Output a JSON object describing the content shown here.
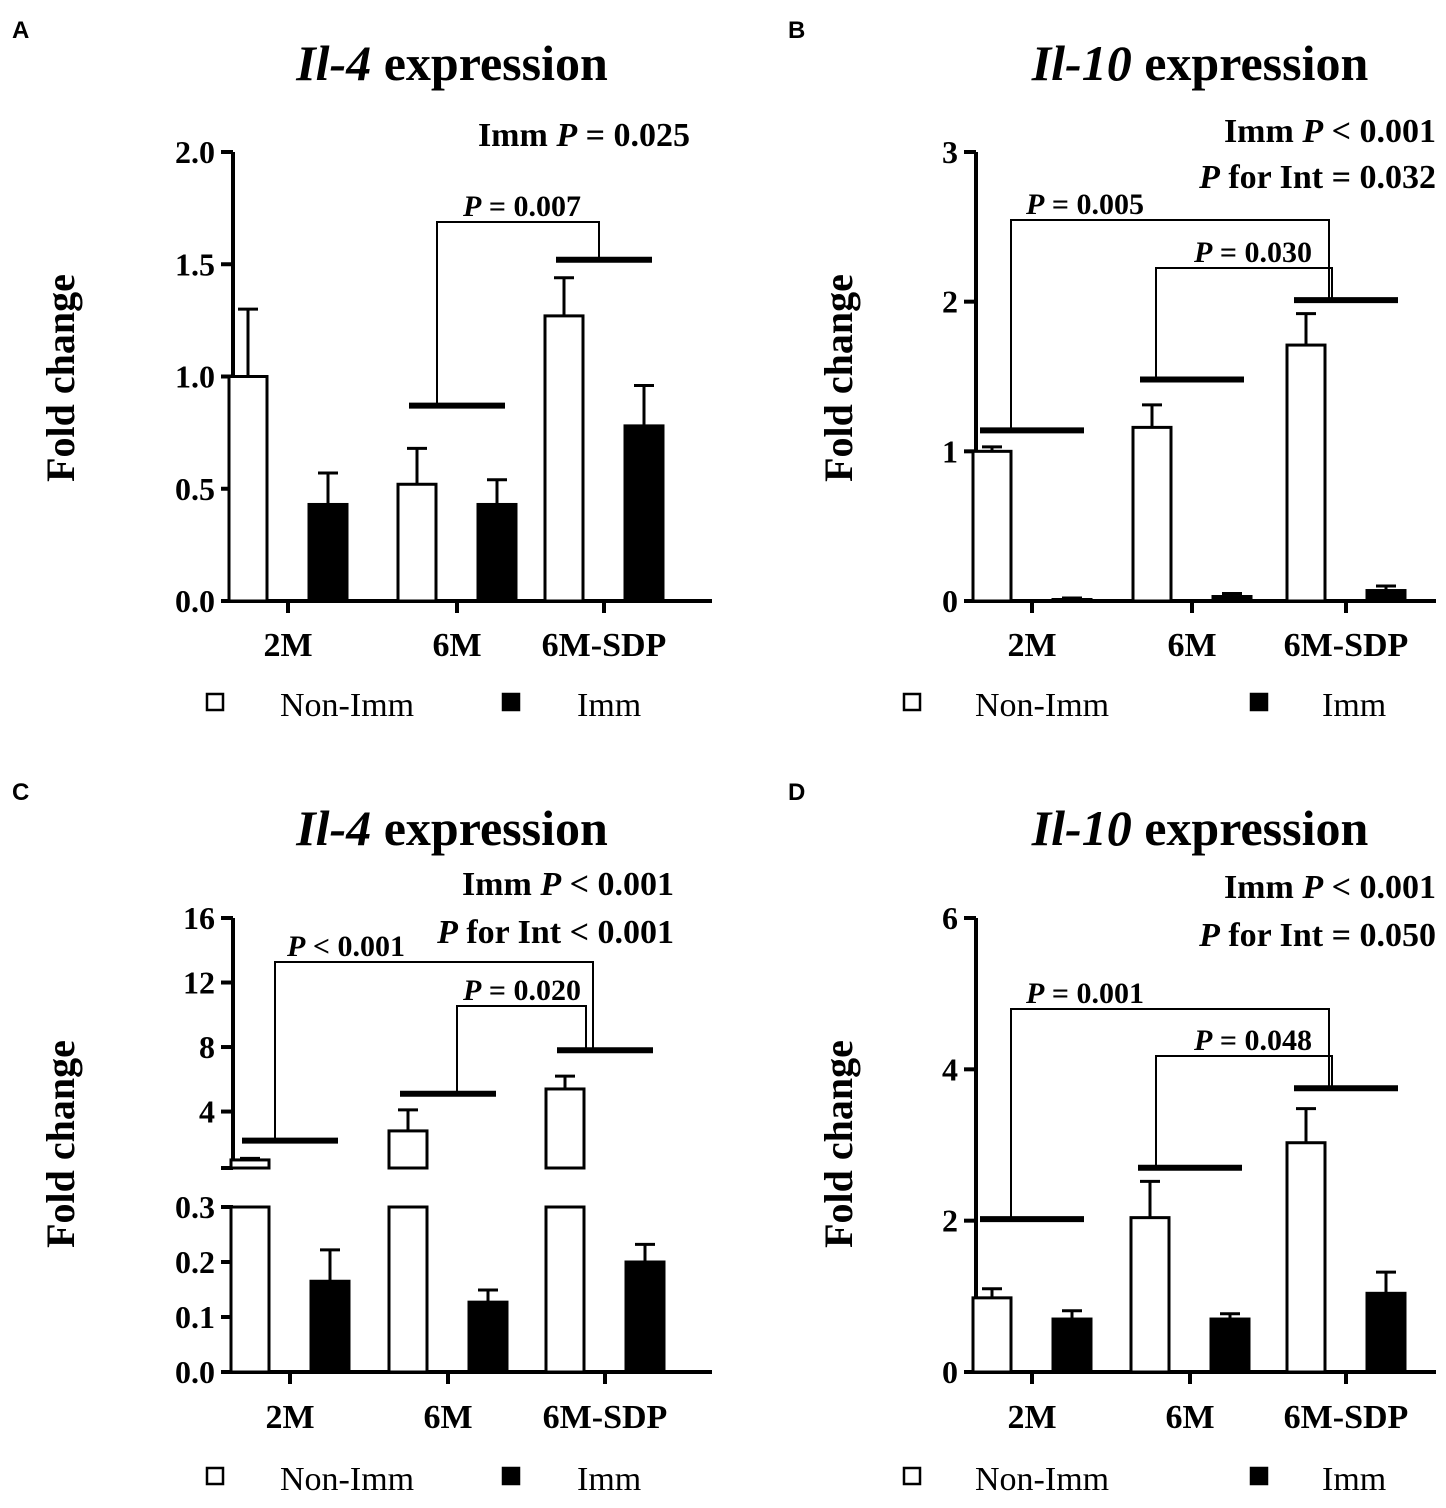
{
  "chart_data": [
    {
      "panel": "A",
      "type": "bar",
      "title_gene": "Il-4",
      "title_rest": " expression",
      "ylabel": "Fold change",
      "yticks": [
        "0.0",
        "0.5",
        "1.0",
        "1.5",
        "2.0"
      ],
      "ylim": [
        0,
        2.0
      ],
      "categories": [
        "2M",
        "6M",
        "6M-SDP"
      ],
      "series": [
        {
          "name": "Non-Imm",
          "values": [
            1.0,
            0.52,
            1.27
          ],
          "errors": [
            0.3,
            0.16,
            0.17
          ]
        },
        {
          "name": "Imm",
          "values": [
            0.43,
            0.43,
            0.78
          ],
          "errors": [
            0.14,
            0.11,
            0.18
          ]
        }
      ],
      "stats": [
        {
          "pre": "Imm ",
          "italic": "P",
          "post": " = 0.025"
        }
      ],
      "comparisons": [
        {
          "italic": "P",
          "text": " = 0.007",
          "from": "6M",
          "to": "6M-SDP"
        }
      ],
      "group_lines": {
        "6M": 0.87,
        "6M-SDP": 1.52
      },
      "legend": [
        "Non-Imm",
        "Imm"
      ]
    },
    {
      "panel": "B",
      "type": "bar",
      "title_gene": "Il-10",
      "title_rest": " expression",
      "ylabel": "Fold change",
      "yticks": [
        "0",
        "1",
        "2",
        "3"
      ],
      "ylim": [
        0,
        3
      ],
      "categories": [
        "2M",
        "6M",
        "6M-SDP"
      ],
      "series": [
        {
          "name": "Non-Imm",
          "values": [
            1.0,
            1.16,
            1.71
          ],
          "errors": [
            0.03,
            0.15,
            0.21
          ]
        },
        {
          "name": "Imm",
          "values": [
            0.01,
            0.03,
            0.07
          ],
          "errors": [
            0.01,
            0.02,
            0.03
          ]
        }
      ],
      "stats": [
        {
          "pre": "Imm ",
          "italic": "P",
          "post": " < 0.001"
        },
        {
          "pre": "",
          "italic": "P",
          "post": " for Int = 0.032"
        }
      ],
      "comparisons": [
        {
          "italic": "P",
          "text": " = 0.005",
          "from": "2M",
          "to": "6M-SDP"
        },
        {
          "italic": "P",
          "text": " = 0.030",
          "from": "6M",
          "to": "6M-SDP"
        }
      ],
      "group_lines": {
        "2M": 1.14,
        "6M": 1.48,
        "6M-SDP": 2.01
      },
      "legend": [
        "Non-Imm",
        "Imm"
      ]
    },
    {
      "panel": "C",
      "type": "bar",
      "title_gene": "Il-4",
      "title_rest": " expression",
      "ylabel": "Fold change",
      "broken_axis": true,
      "yticks_upper": [
        "4",
        "8",
        "12",
        "16"
      ],
      "ylim_upper": [
        0.5,
        16
      ],
      "yticks_lower": [
        "0.0",
        "0.1",
        "0.2",
        "0.3"
      ],
      "ylim_lower": [
        0,
        0.3
      ],
      "categories": [
        "2M",
        "6M",
        "6M-SDP"
      ],
      "series": [
        {
          "name": "Non-Imm",
          "values": [
            1.0,
            2.8,
            5.4
          ],
          "errors": [
            0.1,
            1.3,
            0.8
          ]
        },
        {
          "name": "Imm",
          "values": [
            0.165,
            0.127,
            0.2
          ],
          "errors": [
            0.057,
            0.022,
            0.032
          ]
        }
      ],
      "stats": [
        {
          "pre": "Imm ",
          "italic": "P",
          "post": " < 0.001"
        },
        {
          "pre": "",
          "italic": "P",
          "post": " for Int < 0.001"
        }
      ],
      "comparisons": [
        {
          "italic": "P",
          "text": " < 0.001",
          "from": "2M",
          "to": "6M-SDP"
        },
        {
          "italic": "P",
          "text": " = 0.020",
          "from": "6M",
          "to": "6M-SDP"
        }
      ],
      "group_lines": {
        "2M": 2.2,
        "6M": 5.1,
        "6M-SDP": 7.8
      },
      "legend": [
        "Non-Imm",
        "Imm"
      ]
    },
    {
      "panel": "D",
      "type": "bar",
      "title_gene": "Il-10",
      "title_rest": " expression",
      "ylabel": "Fold change",
      "yticks": [
        "0",
        "2",
        "4",
        "6"
      ],
      "ylim": [
        0,
        6
      ],
      "categories": [
        "2M",
        "6M",
        "6M-SDP"
      ],
      "series": [
        {
          "name": "Non-Imm",
          "values": [
            0.98,
            2.04,
            3.03
          ],
          "errors": [
            0.12,
            0.48,
            0.45
          ]
        },
        {
          "name": "Imm",
          "values": [
            0.7,
            0.7,
            1.04
          ],
          "errors": [
            0.11,
            0.07,
            0.28
          ]
        }
      ],
      "stats": [
        {
          "pre": "Imm ",
          "italic": "P",
          "post": " < 0.001"
        },
        {
          "pre": "",
          "italic": "P",
          "post": " for Int = 0.050"
        }
      ],
      "comparisons": [
        {
          "italic": "P",
          "text": " = 0.001",
          "from": "2M",
          "to": "6M-SDP"
        },
        {
          "italic": "P",
          "text": " = 0.048",
          "from": "6M",
          "to": "6M-SDP"
        }
      ],
      "group_lines": {
        "2M": 2.02,
        "6M": 2.7,
        "6M-SDP": 3.75
      },
      "legend": [
        "Non-Imm",
        "Imm"
      ]
    }
  ]
}
